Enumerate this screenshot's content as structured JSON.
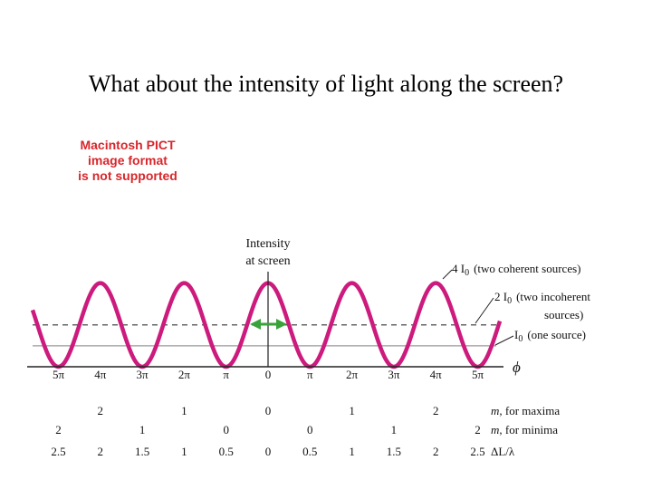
{
  "slide": {
    "title": "What about the intensity of light along the screen?",
    "pict_notice": [
      "Macintosh PICT",
      "image format",
      "is not supported"
    ]
  },
  "chart_data": {
    "type": "line",
    "curve": "intensity = 4 I0 cos^2(phi/2)",
    "ylabel": [
      "Intensity",
      "at screen"
    ],
    "xlabel": "ϕ",
    "x_ticks": [
      "5π",
      "4π",
      "3π",
      "2π",
      "π",
      "0",
      "π",
      "2π",
      "3π",
      "4π",
      "5π"
    ],
    "x_tick_phi_multiples": [
      -5,
      -4,
      -3,
      -2,
      -1,
      0,
      1,
      2,
      3,
      4,
      5
    ],
    "curve_color": "#cc1a7d",
    "levels": [
      {
        "name": "4I0",
        "label_left": "4 I",
        "label_right": "(two coherent sources)",
        "value": 4,
        "style": "none"
      },
      {
        "name": "2I0",
        "label_left": "2 I",
        "label_right_1": "(two incoherent",
        "label_right_2": "sources)",
        "value": 2,
        "style": "dashed"
      },
      {
        "name": "I0",
        "label_left": "I",
        "label_right": "(one source)",
        "value": 1,
        "style": "solid-gray"
      }
    ],
    "level_subscript": "0",
    "rows": [
      {
        "name": "m-maxima",
        "label": "m, for maxima",
        "values": [
          "2",
          "1",
          "0",
          "1",
          "2"
        ],
        "at_phi_multiples": [
          -4,
          -2,
          0,
          2,
          4
        ]
      },
      {
        "name": "m-minima",
        "label": "m, for minima",
        "values": [
          "2",
          "1",
          "0",
          "0",
          "1",
          "2"
        ],
        "at_phi_multiples": [
          -5,
          -3,
          -1,
          1,
          3,
          5
        ]
      },
      {
        "name": "path-difference",
        "label": "ΔL/λ",
        "values": [
          "2.5",
          "2",
          "1.5",
          "1",
          "0.5",
          "0",
          "0.5",
          "1",
          "1.5",
          "2",
          "2.5"
        ],
        "at_phi_multiples": [
          -5,
          -4,
          -3,
          -2,
          -1,
          0,
          1,
          2,
          3,
          4,
          5
        ]
      }
    ],
    "arrow_color": "#3aa23a",
    "ylim": [
      0,
      4
    ],
    "xlim_phi_multiples": [
      -5.5,
      5.5
    ]
  }
}
